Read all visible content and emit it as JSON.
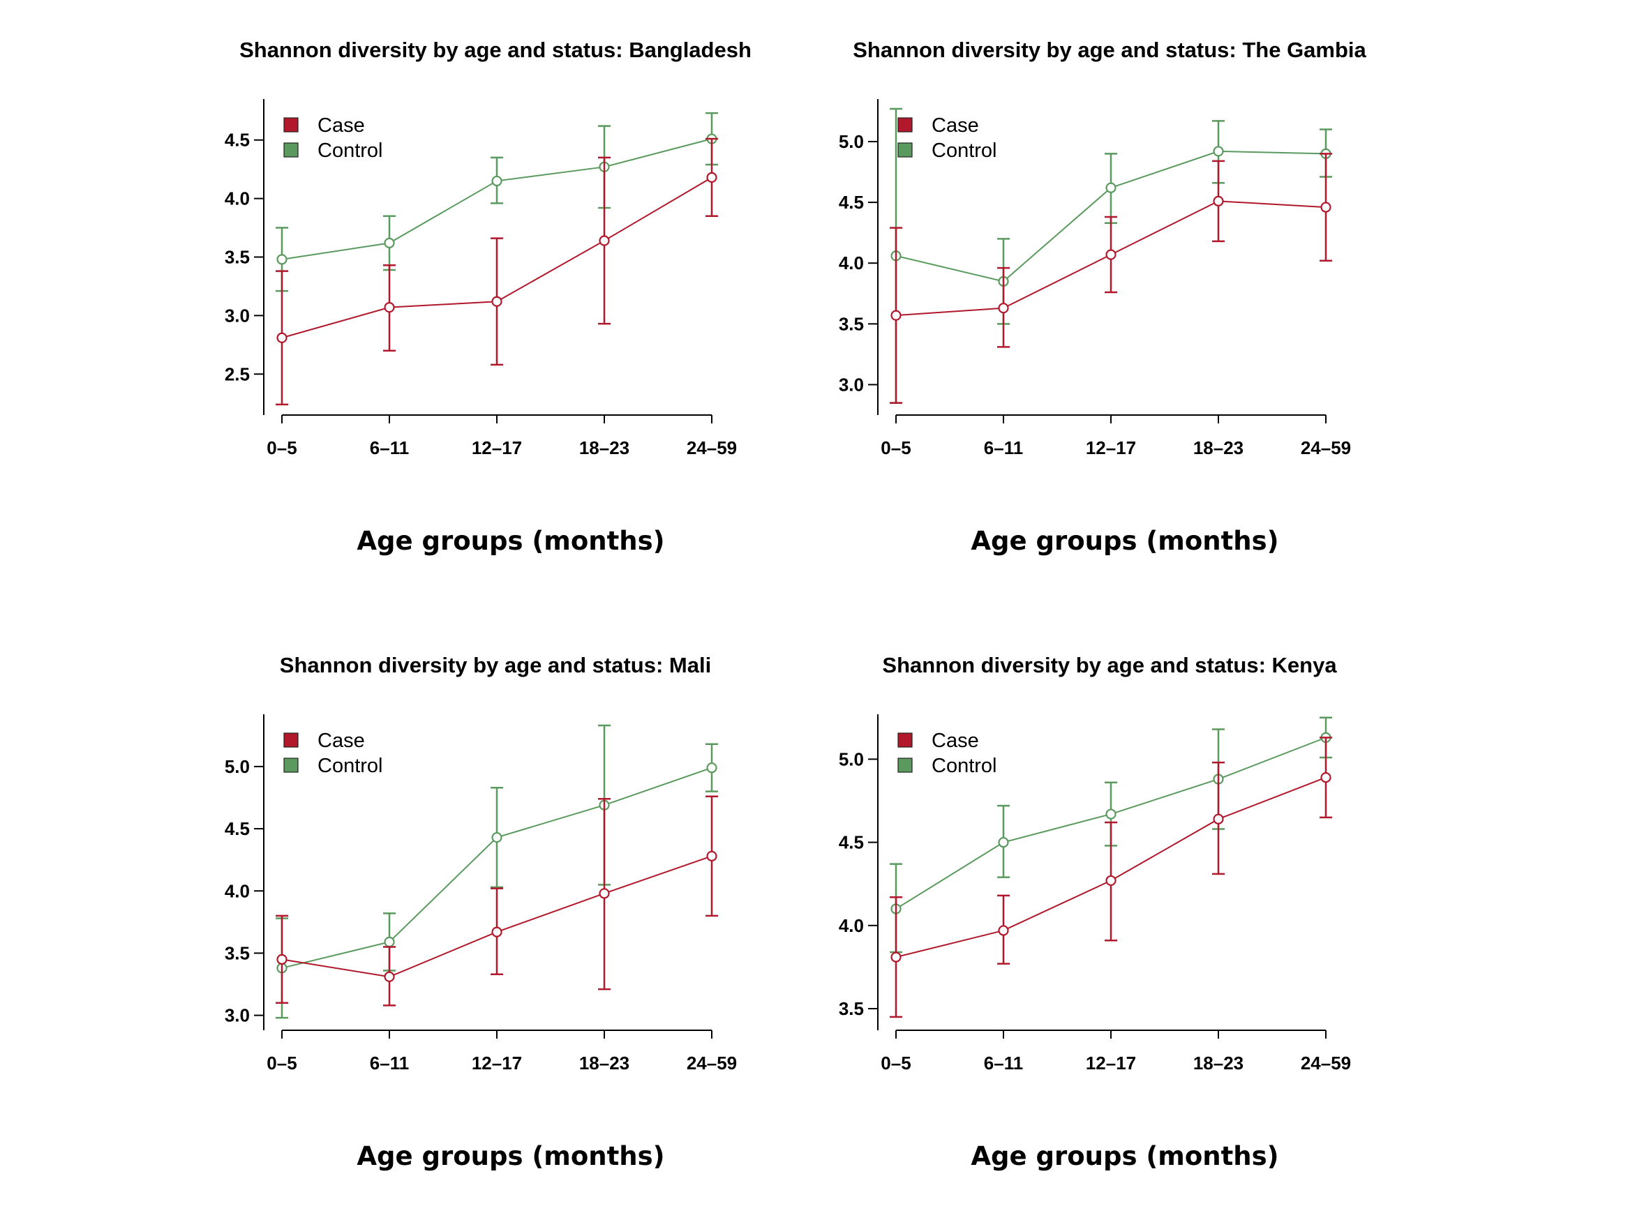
{
  "colors": {
    "case": "#b2182b",
    "control": "#5a9a5e"
  },
  "chart_data": [
    {
      "type": "line",
      "title": "Shannon diversity by age and status: Bangladesh",
      "xlabel": "Age groups (months)",
      "ylabel": "",
      "categories": [
        "0–5",
        "6–11",
        "12–17",
        "18–23",
        "24–59"
      ],
      "ylim": [
        2.15,
        4.85
      ],
      "yticks": [
        2.5,
        3.0,
        3.5,
        4.0,
        4.5
      ],
      "ytick_labels": [
        "2.5",
        "3.0",
        "3.5",
        "4.0",
        "4.5"
      ],
      "legend": {
        "position": "top-left",
        "entries": [
          "Case",
          "Control"
        ]
      },
      "series": [
        {
          "name": "Case",
          "color": "#b2182b",
          "values": [
            2.81,
            3.07,
            3.12,
            3.64,
            4.18
          ],
          "lower": [
            2.24,
            2.7,
            2.58,
            2.93,
            3.85
          ],
          "upper": [
            3.38,
            3.43,
            3.66,
            4.35,
            4.51
          ]
        },
        {
          "name": "Control",
          "color": "#5a9a5e",
          "values": [
            3.48,
            3.62,
            4.15,
            4.27,
            4.51
          ],
          "lower": [
            3.21,
            3.39,
            3.96,
            3.92,
            4.29
          ],
          "upper": [
            3.75,
            3.85,
            4.35,
            4.62,
            4.73
          ]
        }
      ]
    },
    {
      "type": "line",
      "title": "Shannon diversity by age and status: The Gambia",
      "xlabel": "Age groups (months)",
      "ylabel": "",
      "categories": [
        "0–5",
        "6–11",
        "12–17",
        "18–23",
        "24–59"
      ],
      "ylim": [
        2.75,
        5.35
      ],
      "yticks": [
        3.0,
        3.5,
        4.0,
        4.5,
        5.0
      ],
      "ytick_labels": [
        "3.0",
        "3.5",
        "4.0",
        "4.5",
        "5.0"
      ],
      "legend": {
        "position": "top-left",
        "entries": [
          "Case",
          "Control"
        ]
      },
      "series": [
        {
          "name": "Case",
          "color": "#b2182b",
          "values": [
            3.57,
            3.63,
            4.07,
            4.51,
            4.46
          ],
          "lower": [
            2.85,
            3.31,
            3.76,
            4.18,
            4.02
          ],
          "upper": [
            4.29,
            3.96,
            4.38,
            4.84,
            4.9
          ]
        },
        {
          "name": "Control",
          "color": "#5a9a5e",
          "values": [
            4.06,
            3.85,
            4.62,
            4.92,
            4.9
          ],
          "lower": [
            2.85,
            3.5,
            4.33,
            4.66,
            4.71
          ],
          "upper": [
            5.27,
            4.2,
            4.9,
            5.17,
            5.1
          ]
        }
      ]
    },
    {
      "type": "line",
      "title": "Shannon diversity by age and status: Mali",
      "xlabel": "Age groups (months)",
      "ylabel": "",
      "categories": [
        "0–5",
        "6–11",
        "12–17",
        "18–23",
        "24–59"
      ],
      "ylim": [
        2.88,
        5.42
      ],
      "yticks": [
        3.0,
        3.5,
        4.0,
        4.5,
        5.0
      ],
      "ytick_labels": [
        "3.0",
        "3.5",
        "4.0",
        "4.5",
        "5.0"
      ],
      "legend": {
        "position": "top-left",
        "entries": [
          "Case",
          "Control"
        ]
      },
      "series": [
        {
          "name": "Case",
          "color": "#b2182b",
          "values": [
            3.45,
            3.31,
            3.67,
            3.98,
            4.28
          ],
          "lower": [
            3.1,
            3.08,
            3.33,
            3.21,
            3.8
          ],
          "upper": [
            3.8,
            3.55,
            4.02,
            4.74,
            4.76
          ]
        },
        {
          "name": "Control",
          "color": "#5a9a5e",
          "values": [
            3.38,
            3.59,
            4.43,
            4.69,
            4.99
          ],
          "lower": [
            2.98,
            3.36,
            4.03,
            4.05,
            4.8
          ],
          "upper": [
            3.78,
            3.82,
            4.83,
            5.33,
            5.18
          ]
        }
      ]
    },
    {
      "type": "line",
      "title": "Shannon diversity by age and status: Kenya",
      "xlabel": "Age groups (months)",
      "ylabel": "",
      "categories": [
        "0–5",
        "6–11",
        "12–17",
        "18–23",
        "24–59"
      ],
      "ylim": [
        3.37,
        5.27
      ],
      "yticks": [
        3.5,
        4.0,
        4.5,
        5.0
      ],
      "ytick_labels": [
        "3.5",
        "4.0",
        "4.5",
        "5.0"
      ],
      "legend": {
        "position": "top-left",
        "entries": [
          "Case",
          "Control"
        ]
      },
      "series": [
        {
          "name": "Case",
          "color": "#b2182b",
          "values": [
            3.81,
            3.97,
            4.27,
            4.64,
            4.89
          ],
          "lower": [
            3.45,
            3.77,
            3.91,
            4.31,
            4.65
          ],
          "upper": [
            4.17,
            4.18,
            4.62,
            4.98,
            5.13
          ]
        },
        {
          "name": "Control",
          "color": "#5a9a5e",
          "values": [
            4.1,
            4.5,
            4.67,
            4.88,
            5.13
          ],
          "lower": [
            3.84,
            4.29,
            4.48,
            4.58,
            5.01
          ],
          "upper": [
            4.37,
            4.72,
            4.86,
            5.18,
            5.25
          ]
        }
      ]
    }
  ]
}
